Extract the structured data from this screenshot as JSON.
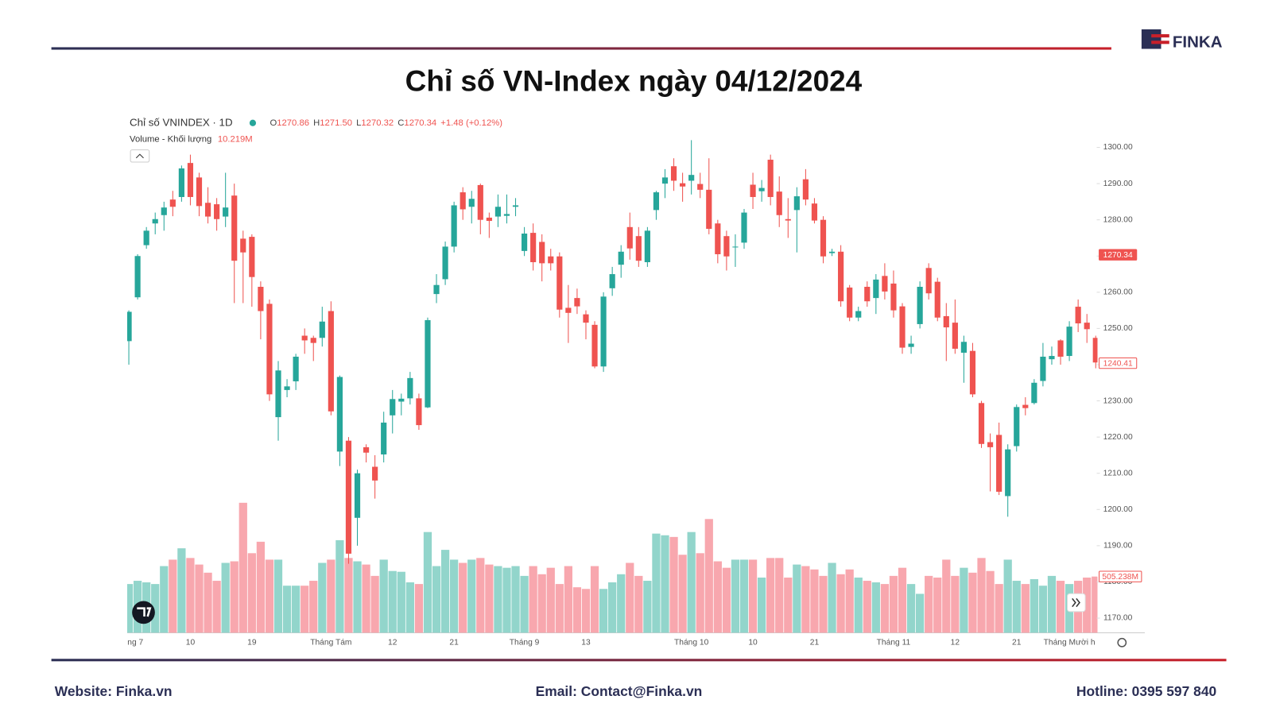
{
  "chart_data": {
    "type": "candlestick",
    "title": "Chỉ số VN-Index ngày 04/12/2024",
    "logo": "FINKA",
    "symbol": "Chỉ số VNINDEX · 1D",
    "legend_items": [
      [
        "O",
        "1270.86"
      ],
      [
        "H",
        "1271.50"
      ],
      [
        "L",
        "1270.32"
      ],
      [
        "C",
        "1270.34"
      ]
    ],
    "change": "+1.48 (+0.12%)",
    "volume_title": "Volume - Khối lượng",
    "volume_value": "10.219M",
    "up_color": "#26a69a",
    "down_color": "#ef5350",
    "volume_up_color": "#92d5cb",
    "volume_down_color": "#f8a7ae",
    "ylim": [
      1170,
      1300
    ],
    "yticks": [
      {
        "value": 1170,
        "label": "1170.00"
      },
      {
        "value": 1180,
        "label": "1180.00"
      },
      {
        "value": 1190,
        "label": "1190.00"
      },
      {
        "value": 1200,
        "label": "1200.00"
      },
      {
        "value": 1210,
        "label": "1210.00"
      },
      {
        "value": 1220,
        "label": "1220.00"
      },
      {
        "value": 1230,
        "label": "1230.00"
      },
      {
        "value": 1240,
        "label": "1240.00"
      },
      {
        "value": 1250,
        "label": "1250.00"
      },
      {
        "value": 1260,
        "label": "1260.00"
      },
      {
        "value": 1270,
        "label": "1270.00"
      },
      {
        "value": 1280,
        "label": "1280.00"
      },
      {
        "value": 1290,
        "label": "1290.00"
      },
      {
        "value": 1300,
        "label": "1300.00"
      }
    ],
    "price_labels": [
      1270.34,
      1240.41
    ],
    "vlim": [
      0,
      1500
    ],
    "last_volume_label": "505.238M",
    "categories": [
      "ng 7",
      null,
      null,
      null,
      null,
      null,
      null,
      "10",
      null,
      null,
      null,
      null,
      null,
      null,
      "19",
      null,
      null,
      null,
      null,
      null,
      null,
      null,
      null,
      "Tháng Tám",
      null,
      null,
      null,
      null,
      null,
      null,
      "12",
      null,
      null,
      null,
      null,
      null,
      null,
      "21",
      null,
      null,
      null,
      null,
      null,
      null,
      null,
      "Tháng 9",
      null,
      null,
      null,
      null,
      null,
      null,
      "13",
      null,
      null,
      null,
      null,
      null,
      null,
      null,
      null,
      null,
      null,
      null,
      "Tháng 10",
      null,
      null,
      null,
      null,
      null,
      null,
      "10",
      null,
      null,
      null,
      null,
      null,
      null,
      "21",
      null,
      null,
      null,
      null,
      null,
      null,
      null,
      null,
      "Tháng 11",
      null,
      null,
      null,
      null,
      null,
      null,
      "12",
      null,
      null,
      null,
      null,
      null,
      null,
      "21",
      null,
      null,
      null,
      null,
      null,
      "Tháng Mười h",
      null,
      null,
      null
    ],
    "ohlc": [
      [
        1246.5,
        1255,
        1240,
        1254.6
      ],
      [
        1258.6,
        1270.5,
        1258,
        1270
      ],
      [
        1273,
        1278,
        1272,
        1277
      ],
      [
        1279,
        1282,
        1276,
        1280.2
      ],
      [
        1281.3,
        1285,
        1277,
        1283.4
      ],
      [
        1285.6,
        1288,
        1281,
        1283.6
      ],
      [
        1286.3,
        1295,
        1285,
        1294.2
      ],
      [
        1295.7,
        1298,
        1284,
        1286.3
      ],
      [
        1291.7,
        1293,
        1281,
        1283.8
      ],
      [
        1284.7,
        1289,
        1279,
        1280.9
      ],
      [
        1284.3,
        1286,
        1277,
        1280.2
      ],
      [
        1280.9,
        1293,
        1278,
        1283.4
      ],
      [
        1286.7,
        1290,
        1257,
        1268.7
      ],
      [
        1274.8,
        1277,
        1257,
        1271
      ],
      [
        1275.3,
        1276,
        1256,
        1264.2
      ],
      [
        1261.5,
        1263,
        1247,
        1254.8
      ],
      [
        1256.8,
        1258,
        1230,
        1231.8
      ],
      [
        1225.5,
        1241,
        1219,
        1238.4
      ],
      [
        1233,
        1236,
        1231,
        1234
      ],
      [
        1235.4,
        1243,
        1233,
        1242.2
      ],
      [
        1248,
        1250,
        1243,
        1246.7
      ],
      [
        1247.4,
        1248,
        1241,
        1246
      ],
      [
        1247.4,
        1256,
        1245,
        1251.9
      ],
      [
        1254.8,
        1257.5,
        1226,
        1227.1
      ],
      [
        1216,
        1237,
        1212,
        1236.6
      ],
      [
        1219,
        1220,
        1185,
        1187.8
      ],
      [
        1197.7,
        1211,
        1190,
        1210
      ],
      [
        1217.2,
        1218,
        1213,
        1215.7
      ],
      [
        1211.8,
        1215,
        1203,
        1208
      ],
      [
        1215.2,
        1227,
        1213,
        1224
      ],
      [
        1226,
        1233,
        1221,
        1230.5
      ],
      [
        1229.8,
        1232,
        1226,
        1230.6
      ],
      [
        1230.7,
        1238,
        1229,
        1236.3
      ],
      [
        1230.7,
        1232,
        1222,
        1223.3
      ],
      [
        1228.2,
        1253,
        1228,
        1252.3
      ],
      [
        1259.5,
        1265,
        1257,
        1262
      ],
      [
        1263.6,
        1274,
        1262,
        1272.6
      ],
      [
        1272.6,
        1285,
        1271,
        1284
      ],
      [
        1287.6,
        1289,
        1280,
        1282.9
      ],
      [
        1283.6,
        1288,
        1279,
        1285.8
      ],
      [
        1289.6,
        1290,
        1276,
        1280
      ],
      [
        1280.6,
        1282,
        1275,
        1279.7
      ],
      [
        1280.9,
        1287,
        1278,
        1283.6
      ],
      [
        1281.1,
        1287,
        1279,
        1281.6
      ],
      [
        1283.6,
        1286,
        1281,
        1284
      ],
      [
        1271.4,
        1278,
        1270,
        1276.2
      ],
      [
        1276.4,
        1279,
        1266,
        1268.3
      ],
      [
        1273.9,
        1276,
        1263,
        1268
      ],
      [
        1269.9,
        1272,
        1266,
        1268
      ],
      [
        1269.9,
        1271,
        1253,
        1255.2
      ],
      [
        1255.7,
        1262,
        1246,
        1254.3
      ],
      [
        1258.4,
        1261,
        1254,
        1256.1
      ],
      [
        1253.9,
        1255,
        1247,
        1251.6
      ],
      [
        1251,
        1252,
        1239,
        1239.5
      ],
      [
        1239.5,
        1260,
        1238,
        1258.8
      ],
      [
        1261.1,
        1267,
        1259,
        1265
      ],
      [
        1267.6,
        1273,
        1264,
        1271.2
      ],
      [
        1278,
        1282,
        1269,
        1272.1
      ],
      [
        1275.5,
        1278,
        1267,
        1268.7
      ],
      [
        1268.3,
        1278,
        1267,
        1277
      ],
      [
        1282.7,
        1288,
        1280,
        1287.6
      ],
      [
        1290,
        1294,
        1286,
        1291.7
      ],
      [
        1294.8,
        1297,
        1288,
        1290.8
      ],
      [
        1290.1,
        1293,
        1285,
        1289.2
      ],
      [
        1290.8,
        1302,
        1287,
        1292.4
      ],
      [
        1289.9,
        1293,
        1286,
        1288.3
      ],
      [
        1288.3,
        1297,
        1276,
        1277.5
      ],
      [
        1279,
        1280,
        1268,
        1270.5
      ],
      [
        1275.5,
        1277,
        1266,
        1269.9
      ],
      [
        1272.4,
        1276,
        1267,
        1272.6
      ],
      [
        1273.7,
        1283,
        1272,
        1282
      ],
      [
        1289.7,
        1293,
        1283,
        1286.3
      ],
      [
        1287.9,
        1291,
        1285,
        1288.8
      ],
      [
        1296.6,
        1298,
        1284,
        1286.3
      ],
      [
        1287.8,
        1292,
        1278,
        1281.3
      ],
      [
        1280.2,
        1286,
        1275,
        1279.8
      ],
      [
        1282.7,
        1289,
        1271,
        1286.5
      ],
      [
        1291.2,
        1294,
        1284,
        1285.6
      ],
      [
        1284.5,
        1286,
        1279,
        1279.8
      ],
      [
        1280,
        1281,
        1268,
        1269.9
      ],
      [
        1270.8,
        1272,
        1270,
        1271.2
      ],
      [
        1271.2,
        1273,
        1256,
        1257.5
      ],
      [
        1261.3,
        1262,
        1252,
        1253
      ],
      [
        1253,
        1256,
        1252,
        1254.8
      ],
      [
        1261.5,
        1263,
        1256,
        1257.5
      ],
      [
        1258.4,
        1265,
        1254,
        1263.5
      ],
      [
        1264.5,
        1268,
        1258,
        1260.2
      ],
      [
        1262.4,
        1266,
        1253,
        1255
      ],
      [
        1256.1,
        1257,
        1243,
        1244.7
      ],
      [
        1244.9,
        1248,
        1243,
        1245.8
      ],
      [
        1251.2,
        1263,
        1250,
        1261.5
      ],
      [
        1266.7,
        1268,
        1258,
        1259.7
      ],
      [
        1262.9,
        1264,
        1252,
        1253
      ],
      [
        1253.4,
        1257,
        1241,
        1250.3
      ],
      [
        1251.6,
        1258,
        1243,
        1244.4
      ],
      [
        1243.3,
        1248,
        1235,
        1246.3
      ],
      [
        1243.8,
        1246,
        1231,
        1231.8
      ],
      [
        1229.4,
        1230,
        1217,
        1218.1
      ],
      [
        1218.6,
        1221,
        1205,
        1217.2
      ],
      [
        1220.6,
        1224,
        1204,
        1204.9
      ],
      [
        1203.7,
        1218,
        1198,
        1216.6
      ],
      [
        1217.5,
        1229,
        1216,
        1228.3
      ],
      [
        1228.9,
        1231,
        1226,
        1228
      ],
      [
        1229.4,
        1236,
        1229,
        1235
      ],
      [
        1235.5,
        1246,
        1234,
        1242.2
      ],
      [
        1241.5,
        1245,
        1240,
        1242.4
      ],
      [
        1246.7,
        1247,
        1240,
        1242.2
      ],
      [
        1242.4,
        1252,
        1241,
        1250.5
      ],
      [
        1256,
        1258,
        1249,
        1251.4
      ],
      [
        1251.6,
        1254,
        1246,
        1249.8
      ],
      [
        1247.4,
        1248,
        1239,
        1240.6
      ]
    ],
    "volumes": [
      438,
      467,
      453,
      438,
      599,
      657,
      759,
      672,
      613,
      540,
      467,
      628,
      642,
      1168,
      715,
      818,
      657,
      657,
      423,
      423,
      423,
      467,
      628,
      657,
      832,
      672,
      642,
      613,
      511,
      657,
      555,
      548,
      453,
      438,
      905,
      599,
      745,
      657,
      628,
      657,
      672,
      613,
      599,
      584,
      599,
      511,
      599,
      526,
      584,
      438,
      599,
      409,
      394,
      599,
      394,
      453,
      526,
      628,
      511,
      467,
      891,
      876,
      861,
      701,
      905,
      715,
      1022,
      642,
      584,
      657,
      657,
      657,
      496,
      672,
      672,
      496,
      613,
      599,
      569,
      511,
      628,
      526,
      569,
      496,
      467,
      453,
      438,
      511,
      584,
      438,
      350,
      511,
      496,
      657,
      511,
      584,
      540,
      672,
      555,
      438,
      657,
      467,
      438,
      482,
      423,
      511,
      467,
      438,
      467,
      496,
      505.238
    ],
    "footer": {
      "website": "Website: Finka.vn",
      "email": "Email: Contact@Finka.vn",
      "hotline": "Hotline: 0395 597 840"
    }
  }
}
